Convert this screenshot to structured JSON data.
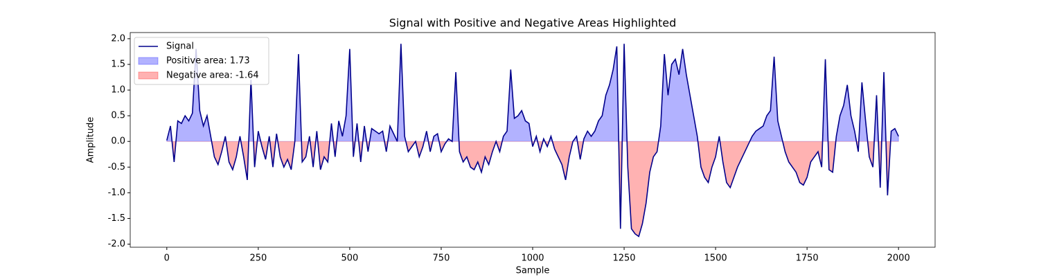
{
  "chart_data": {
    "type": "line",
    "title": "Signal with Positive and Negative Areas Highlighted",
    "x_label": "Sample",
    "y_label": "Amplitude",
    "x": [
      0,
      10,
      20,
      30,
      40,
      50,
      60,
      70,
      80,
      90,
      100,
      110,
      120,
      130,
      140,
      150,
      160,
      170,
      180,
      190,
      200,
      210,
      220,
      230,
      240,
      250,
      260,
      270,
      280,
      290,
      300,
      310,
      320,
      330,
      340,
      350,
      360,
      370,
      380,
      390,
      400,
      410,
      420,
      430,
      440,
      450,
      460,
      470,
      480,
      490,
      500,
      510,
      520,
      530,
      540,
      550,
      560,
      570,
      580,
      590,
      600,
      610,
      620,
      630,
      640,
      650,
      660,
      670,
      680,
      690,
      700,
      710,
      720,
      730,
      740,
      750,
      760,
      770,
      780,
      790,
      800,
      810,
      820,
      830,
      840,
      850,
      860,
      870,
      880,
      890,
      900,
      910,
      920,
      930,
      940,
      950,
      960,
      970,
      980,
      990,
      1000,
      1010,
      1020,
      1030,
      1040,
      1050,
      1060,
      1070,
      1080,
      1090,
      1100,
      1110,
      1120,
      1130,
      1140,
      1150,
      1160,
      1170,
      1180,
      1190,
      1200,
      1210,
      1220,
      1230,
      1240,
      1250,
      1260,
      1270,
      1280,
      1290,
      1300,
      1310,
      1320,
      1330,
      1340,
      1350,
      1360,
      1370,
      1380,
      1390,
      1400,
      1410,
      1420,
      1430,
      1440,
      1450,
      1460,
      1470,
      1480,
      1490,
      1500,
      1510,
      1520,
      1530,
      1540,
      1550,
      1560,
      1570,
      1580,
      1590,
      1600,
      1610,
      1620,
      1630,
      1640,
      1650,
      1660,
      1670,
      1680,
      1690,
      1700,
      1710,
      1720,
      1730,
      1740,
      1750,
      1760,
      1770,
      1780,
      1790,
      1800,
      1810,
      1820,
      1830,
      1840,
      1850,
      1860,
      1870,
      1880,
      1890,
      1900,
      1910,
      1920,
      1930,
      1940,
      1950,
      1960,
      1970,
      1980,
      1990,
      2000
    ],
    "series": [
      {
        "name": "Signal",
        "color": "#00008b",
        "values": [
          0.02,
          0.3,
          -0.4,
          0.4,
          0.35,
          0.5,
          0.4,
          0.55,
          1.8,
          0.6,
          0.3,
          0.5,
          0.1,
          -0.3,
          -0.45,
          -0.2,
          0.1,
          -0.4,
          -0.55,
          -0.3,
          0.1,
          -0.3,
          -0.75,
          1.2,
          -0.5,
          0.2,
          -0.1,
          -0.35,
          0.1,
          -0.5,
          0.15,
          -0.3,
          -0.5,
          -0.35,
          -0.55,
          0.0,
          1.7,
          -0.4,
          -0.3,
          0.1,
          -0.5,
          0.2,
          -0.55,
          -0.3,
          -0.4,
          0.35,
          -0.3,
          0.4,
          0.1,
          0.5,
          1.8,
          -0.3,
          0.35,
          -0.4,
          0.3,
          -0.2,
          0.25,
          0.2,
          0.15,
          0.2,
          -0.2,
          0.3,
          0.15,
          0.0,
          1.9,
          0.1,
          -0.2,
          -0.1,
          0.0,
          -0.3,
          -0.1,
          0.2,
          -0.2,
          0.1,
          0.15,
          -0.2,
          -0.05,
          0.05,
          0.0,
          1.35,
          -0.2,
          -0.4,
          -0.3,
          -0.5,
          -0.55,
          -0.4,
          -0.6,
          -0.3,
          -0.45,
          -0.2,
          0.0,
          -0.2,
          0.1,
          0.2,
          1.4,
          0.45,
          0.5,
          0.6,
          0.4,
          0.35,
          -0.1,
          0.1,
          -0.2,
          0.05,
          -0.1,
          0.1,
          -0.15,
          -0.3,
          -0.45,
          -0.75,
          -0.3,
          0.0,
          0.1,
          -0.35,
          0.05,
          0.2,
          0.1,
          0.2,
          0.4,
          0.5,
          0.9,
          1.1,
          1.4,
          1.85,
          -1.7,
          1.9,
          -0.5,
          -1.7,
          -1.8,
          -1.85,
          -1.6,
          -1.2,
          -0.6,
          -0.3,
          -0.2,
          0.3,
          1.7,
          0.9,
          1.5,
          1.6,
          1.3,
          1.8,
          1.3,
          0.9,
          0.5,
          0.1,
          -0.5,
          -0.7,
          -0.8,
          -0.5,
          -0.3,
          0.1,
          -0.4,
          -0.8,
          -0.9,
          -0.7,
          -0.5,
          -0.35,
          -0.2,
          -0.05,
          0.1,
          0.2,
          0.25,
          0.3,
          0.5,
          0.6,
          1.65,
          0.4,
          0.1,
          -0.2,
          -0.4,
          -0.5,
          -0.6,
          -0.8,
          -0.85,
          -0.7,
          -0.4,
          -0.3,
          -0.2,
          -0.5,
          1.6,
          -0.55,
          -0.6,
          0.1,
          0.5,
          0.7,
          1.1,
          0.5,
          0.2,
          -0.2,
          1.15,
          0.4,
          -0.3,
          -0.5,
          0.9,
          -0.9,
          1.35,
          -1.05,
          0.2,
          0.25,
          0.1
        ]
      }
    ],
    "fills": [
      {
        "name": "Positive area: 1.73",
        "color": "#0000ff",
        "side": "positive"
      },
      {
        "name": "Negative area: -1.64",
        "color": "#ff0000",
        "side": "negative"
      }
    ],
    "xlim": [
      -100,
      2100
    ],
    "ylim": [
      -2.06,
      2.12
    ],
    "xticks": [
      0,
      250,
      500,
      750,
      1000,
      1250,
      1500,
      1750,
      2000
    ],
    "yticks": [
      {
        "value": -2,
        "label": "-2.0"
      },
      -1.5,
      {
        "value": -1,
        "label": "-1.0"
      },
      -0.5,
      {
        "value": 0,
        "label": "0.0"
      },
      0.5,
      {
        "value": 1,
        "label": "1.0"
      },
      1.5,
      {
        "value": 2,
        "label": "2.0"
      }
    ],
    "legend": "upper left"
  }
}
